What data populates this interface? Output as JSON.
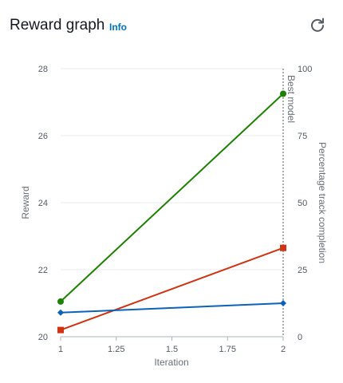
{
  "header": {
    "title": "Reward graph",
    "info_label": "Info",
    "refresh_icon": "refresh-icon"
  },
  "chart_data": {
    "type": "line",
    "xlabel": "Iteration",
    "ylabel": "Reward",
    "y2label": "Percentage track completion",
    "xlim": [
      1,
      2
    ],
    "ylim": [
      20,
      28
    ],
    "y2lim": [
      0,
      100
    ],
    "x_ticks": [
      "1",
      "1.25",
      "1.5",
      "1.75",
      "2"
    ],
    "y_ticks": [
      "20",
      "22",
      "24",
      "26",
      "28"
    ],
    "y2_ticks": [
      "0",
      "25",
      "50",
      "75",
      "100"
    ],
    "grid": true,
    "annotation": {
      "label": "Best model",
      "x": 2
    },
    "series": [
      {
        "color": "#1d8102",
        "marker": "circle",
        "axis": "left",
        "x": [
          1,
          2
        ],
        "y": [
          21.05,
          27.25
        ]
      },
      {
        "color": "#d13212",
        "marker": "square",
        "axis": "left",
        "x": [
          1,
          2
        ],
        "y": [
          20.2,
          22.65
        ]
      },
      {
        "color": "#0b62b8",
        "marker": "diamond",
        "axis": "right",
        "x": [
          1,
          2
        ],
        "y": [
          9,
          12.5
        ]
      }
    ]
  }
}
